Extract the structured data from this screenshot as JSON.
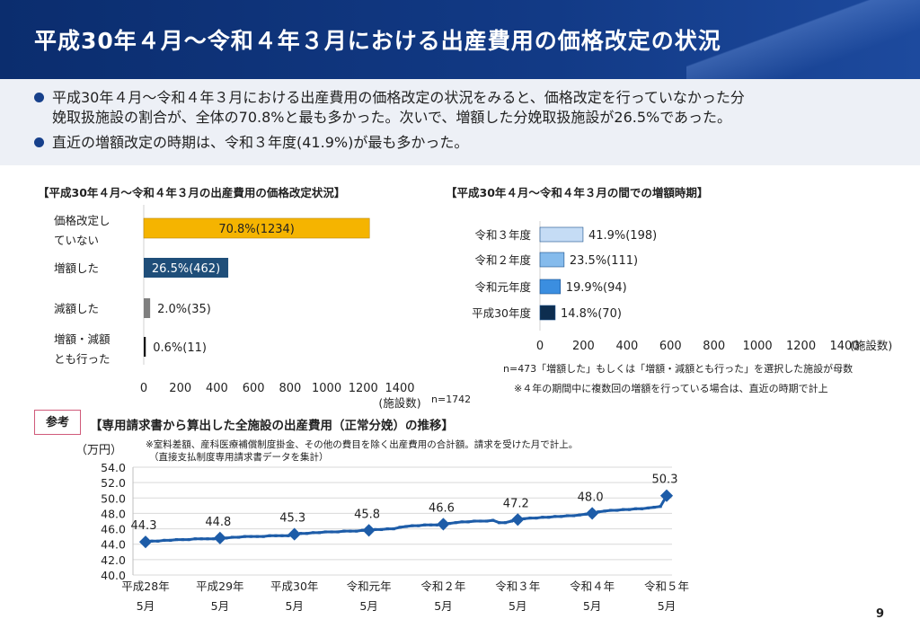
{
  "header": {
    "title": "平成30年４月～令和４年３月における出産費用の価格改定の状況"
  },
  "summary": {
    "bullets": [
      {
        "line1": "平成30年４月～令和４年３月における出産費用の価格改定の状況をみると、価格改定を行っていなかった分",
        "line2": "娩取扱施設の割合が、全体の70.8%と最も多かった。次いで、増額した分娩取扱施設が26.5%であった。"
      },
      {
        "line1": "直近の増額改定の時期は、令和３年度(41.9%)が最も多かった。"
      }
    ]
  },
  "colors": {
    "header": "#0b2d6e",
    "bullet": "#17408b",
    "line": "#1d5ca8"
  },
  "chart_data": [
    {
      "type": "bar",
      "title": "【平成30年４月～令和４年３月の出産費用の価格改定状況】",
      "categories": [
        [
          "価格改定し",
          "ていない"
        ],
        [
          "増額した"
        ],
        [
          "減額した"
        ],
        [
          "増額・減額",
          "とも行った"
        ]
      ],
      "values": [
        1234,
        462,
        35,
        11
      ],
      "data_labels": [
        "70.8%(1234)",
        "26.5%(462)",
        "2.0%(35)",
        "0.6%(11)"
      ],
      "colors": [
        "#f5b400",
        "#1f4e79",
        "#7f7f7f",
        "#111111"
      ],
      "xlim": [
        0,
        1400
      ],
      "xticks": [
        0,
        200,
        400,
        600,
        800,
        1000,
        1200,
        1400
      ],
      "xlabel": "(施設数)",
      "note": "n=1742"
    },
    {
      "type": "bar",
      "title": "【平成30年４月～令和４年３月の間での増額時期】",
      "categories": [
        "令和３年度",
        "令和２年度",
        "令和元年度",
        "平成30年度"
      ],
      "values": [
        198,
        111,
        94,
        70
      ],
      "data_labels": [
        "41.9%(198)",
        "23.5%(111)",
        "19.9%(94)",
        "14.8%(70)"
      ],
      "colors": [
        "#c5dcf5",
        "#85bbec",
        "#3b8ee0",
        "#0d2d4f"
      ],
      "xlim": [
        0,
        1400
      ],
      "xticks": [
        0,
        200,
        400,
        600,
        800,
        1000,
        1200,
        1400
      ],
      "xlabel": "(施設数)",
      "notes": [
        "n=473「増額した」もしくは「増額・減額とも行った」を選択した施設が母数",
        "※４年の期間中に複数回の増額を行っている場合は、直近の時期で計上"
      ]
    },
    {
      "type": "line",
      "title": "【専用請求書から算出した全施設の出産費用（正常分娩）の推移】",
      "ylabel": "（万円）",
      "note_lines": [
        "※室料差額、産科医療補償制度掛金、その他の費目を除く出産費用の合計額。請求を受けた月で計上。",
        "（直接支払制度専用請求書データを集計）"
      ],
      "ylim": [
        40,
        54
      ],
      "yticks": [
        "40.0",
        "42.0",
        "44.0",
        "46.0",
        "48.0",
        "50.0",
        "52.0",
        "54.0"
      ],
      "x_labels": [
        [
          "平成28年",
          "5月"
        ],
        [
          "平成29年",
          "5月"
        ],
        [
          "平成30年",
          "5月"
        ],
        [
          "令和元年",
          "5月"
        ],
        [
          "令和２年",
          "5月"
        ],
        [
          "令和３年",
          "5月"
        ],
        [
          "令和４年",
          "5月"
        ],
        [
          "令和５年",
          "5月"
        ]
      ],
      "labeled_points": [
        {
          "month": 0,
          "value": 44.3,
          "label": "44.3"
        },
        {
          "month": 12,
          "value": 44.8,
          "label": "44.8"
        },
        {
          "month": 24,
          "value": 45.3,
          "label": "45.3"
        },
        {
          "month": 36,
          "value": 45.8,
          "label": "45.8"
        },
        {
          "month": 48,
          "value": 46.6,
          "label": "46.6"
        },
        {
          "month": 60,
          "value": 47.2,
          "label": "47.2"
        },
        {
          "month": 72,
          "value": 48.0,
          "label": "48.0"
        },
        {
          "month": 84,
          "value": 50.3,
          "label": "50.3"
        }
      ],
      "values": [
        44.3,
        44.4,
        44.4,
        44.5,
        44.5,
        44.6,
        44.6,
        44.6,
        44.7,
        44.7,
        44.7,
        44.7,
        44.8,
        44.8,
        44.9,
        44.9,
        45.0,
        45.0,
        45.0,
        45.0,
        45.1,
        45.1,
        45.1,
        45.1,
        45.3,
        45.4,
        45.4,
        45.5,
        45.5,
        45.6,
        45.6,
        45.6,
        45.7,
        45.7,
        45.7,
        45.8,
        45.8,
        45.9,
        45.9,
        46.0,
        46.0,
        46.2,
        46.3,
        46.4,
        46.4,
        46.5,
        46.5,
        46.5,
        46.6,
        46.7,
        46.8,
        46.9,
        46.9,
        47.0,
        47.0,
        47.0,
        47.1,
        46.8,
        46.8,
        47.0,
        47.2,
        47.3,
        47.4,
        47.4,
        47.5,
        47.5,
        47.6,
        47.6,
        47.7,
        47.7,
        47.8,
        47.9,
        48.0,
        48.2,
        48.3,
        48.4,
        48.4,
        48.5,
        48.5,
        48.6,
        48.6,
        48.7,
        48.8,
        48.9,
        50.3
      ]
    }
  ],
  "reference": {
    "label": "参考"
  },
  "footer": {
    "page_number": "9"
  }
}
